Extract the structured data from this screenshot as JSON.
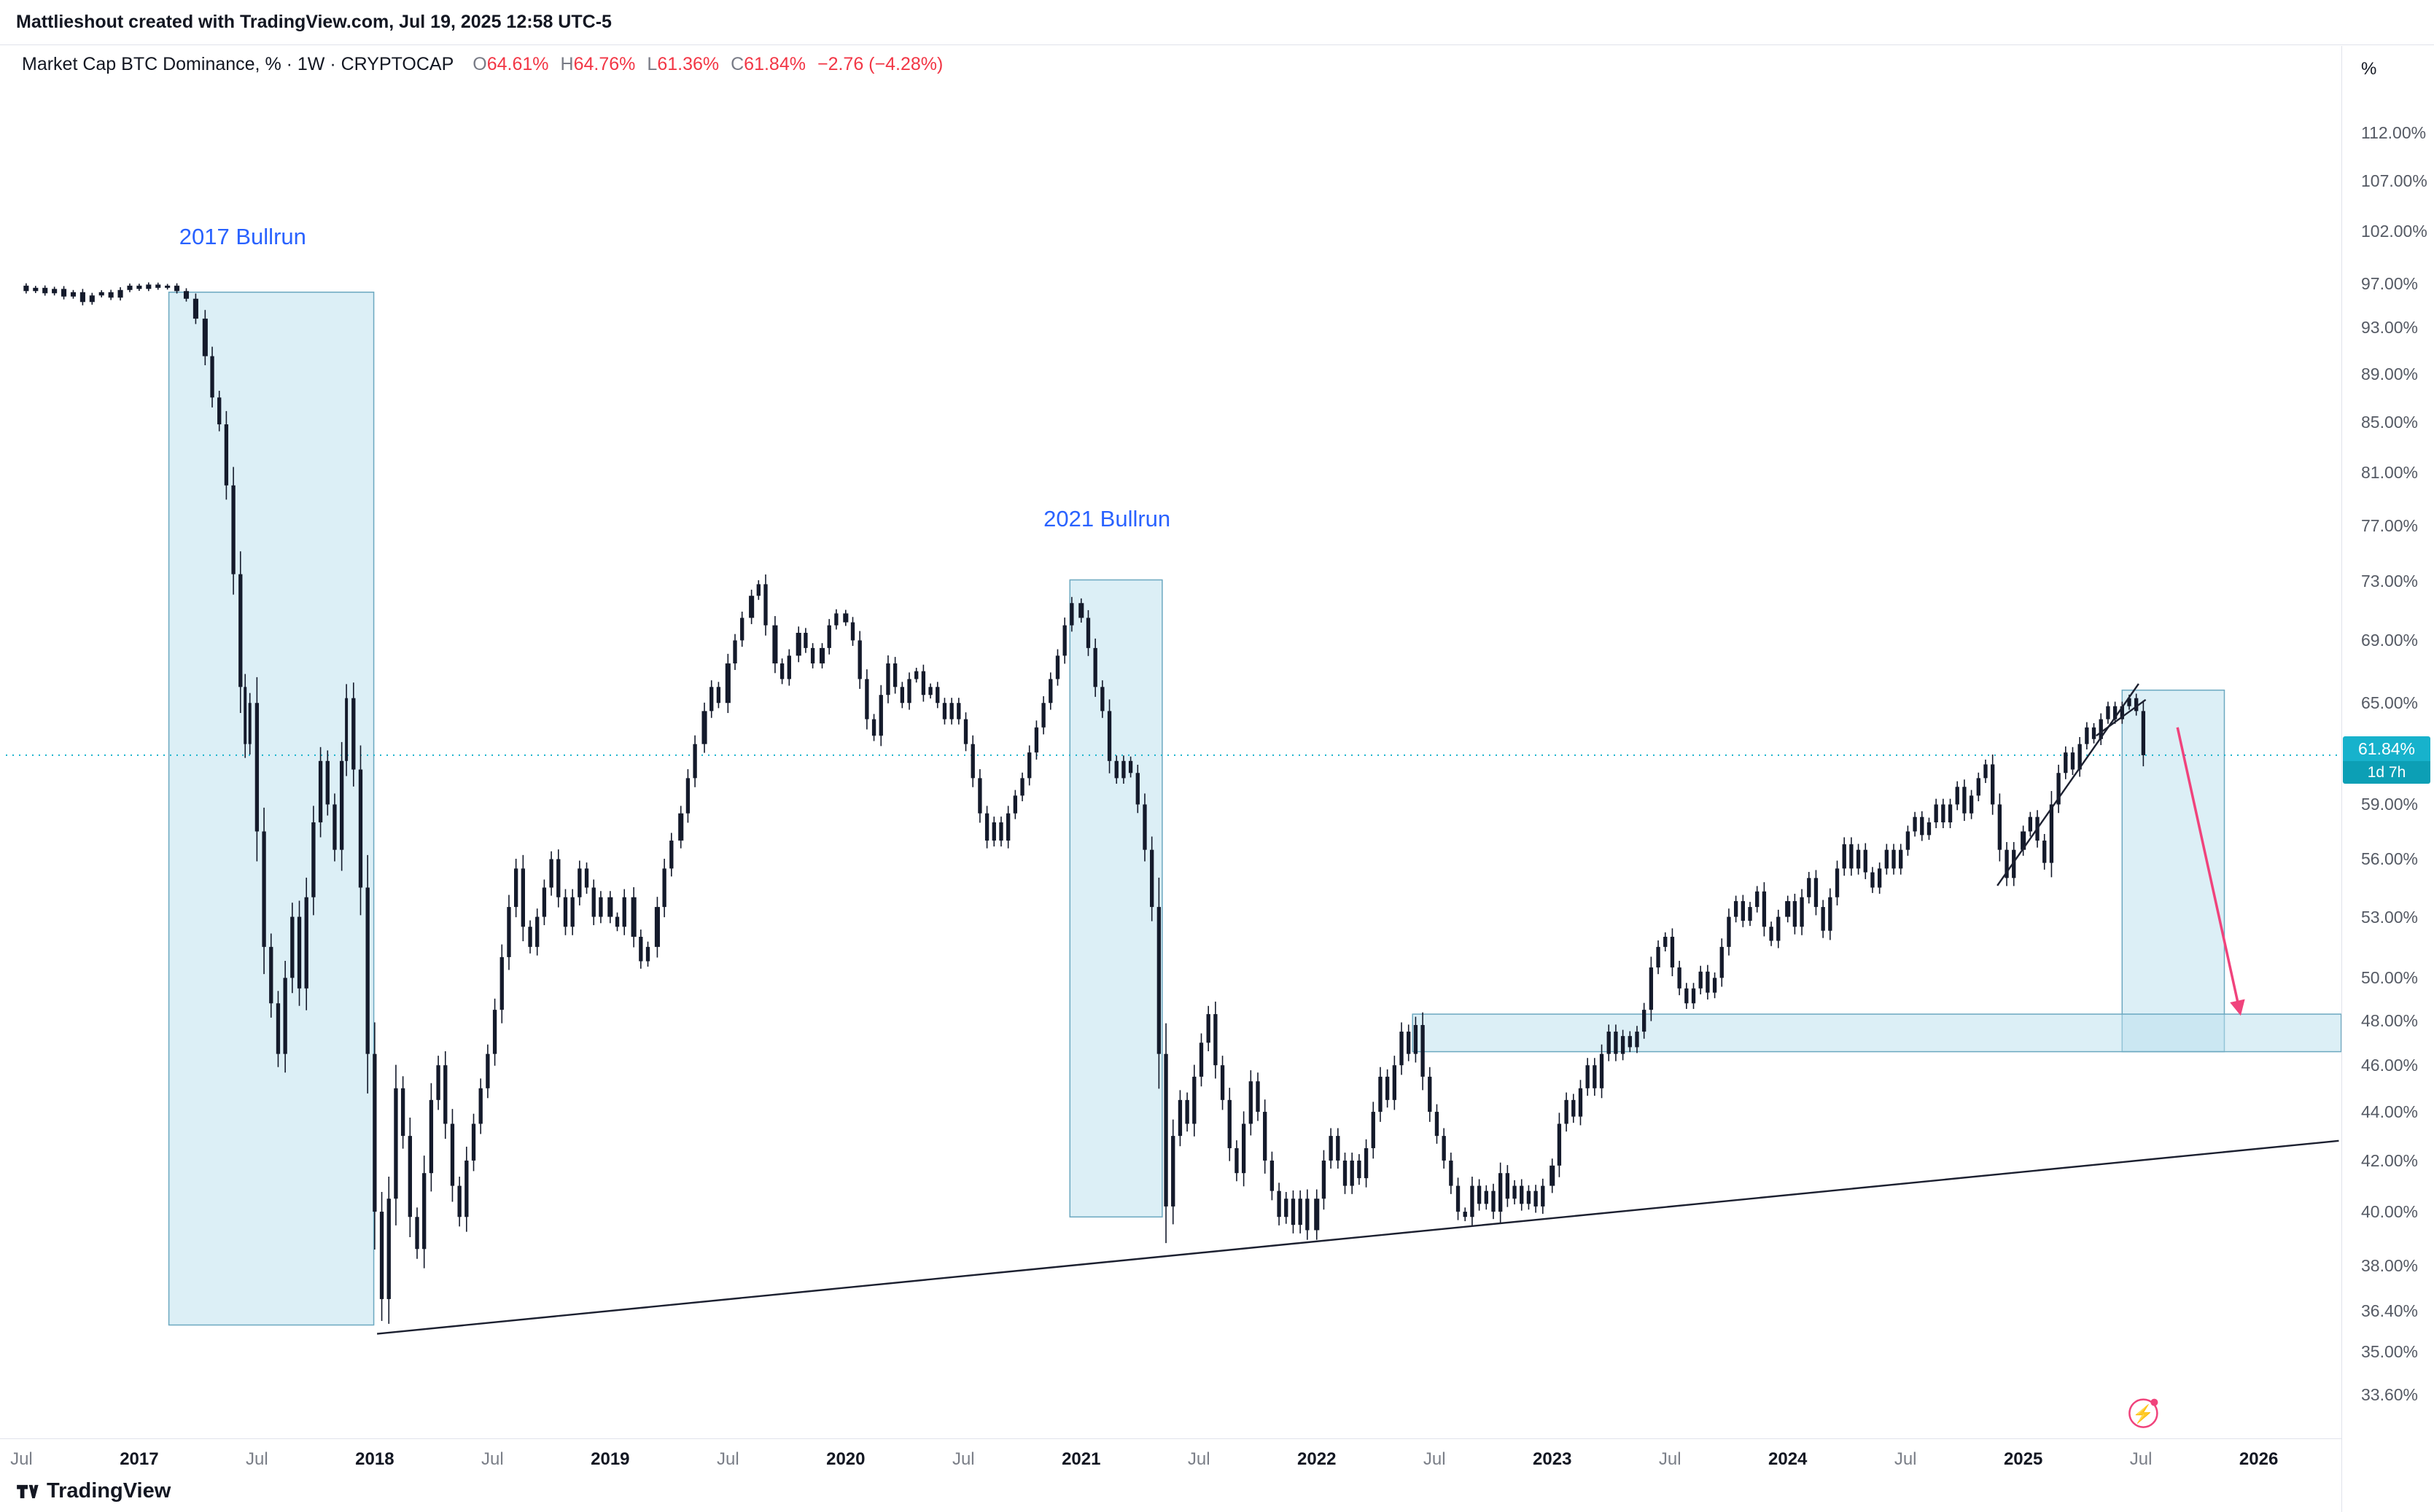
{
  "header": {
    "attribution": "Mattlieshout created with TradingView.com, Jul 19, 2025 12:58 UTC-5"
  },
  "legend": {
    "title": "Market Cap BTC Dominance, % · 1W · CRYPTOCAP",
    "ohlc": {
      "o_label": "O",
      "o": "64.61%",
      "h_label": "H",
      "h": "64.76%",
      "l_label": "L",
      "l": "61.36%",
      "c_label": "C",
      "c": "61.84%",
      "change": "−2.76 (−4.28%)"
    }
  },
  "colors": {
    "accent_cyan": "#17b2cc",
    "down_red": "#f23645",
    "annotation_blue": "#2962ff",
    "box_fill": "#badfee",
    "box_stroke": "#6ba8c0",
    "arrow_pink": "#f0437c",
    "trendline_black": "#1c2030"
  },
  "price_axis": {
    "unit": "%",
    "ticks": [
      {
        "v": 112,
        "label": "112.00%"
      },
      {
        "v": 107,
        "label": "107.00%"
      },
      {
        "v": 102,
        "label": "102.00%"
      },
      {
        "v": 97,
        "label": "97.00%"
      },
      {
        "v": 93,
        "label": "93.00%"
      },
      {
        "v": 89,
        "label": "89.00%"
      },
      {
        "v": 85,
        "label": "85.00%"
      },
      {
        "v": 81,
        "label": "81.00%"
      },
      {
        "v": 77,
        "label": "77.00%"
      },
      {
        "v": 73,
        "label": "73.00%"
      },
      {
        "v": 69,
        "label": "69.00%"
      },
      {
        "v": 65,
        "label": "65.00%"
      },
      {
        "v": 59,
        "label": "59.00%"
      },
      {
        "v": 56,
        "label": "56.00%"
      },
      {
        "v": 53,
        "label": "53.00%"
      },
      {
        "v": 50,
        "label": "50.00%"
      },
      {
        "v": 48,
        "label": "48.00%"
      },
      {
        "v": 46,
        "label": "46.00%"
      },
      {
        "v": 44,
        "label": "44.00%"
      },
      {
        "v": 42,
        "label": "42.00%"
      },
      {
        "v": 40,
        "label": "40.00%"
      },
      {
        "v": 38,
        "label": "38.00%"
      },
      {
        "v": 36.4,
        "label": "36.40%"
      },
      {
        "v": 35,
        "label": "35.00%"
      },
      {
        "v": 33.6,
        "label": "33.60%"
      }
    ],
    "last_price_label": {
      "value": "61.84%",
      "countdown": "1d 7h",
      "bg": "#17b2cc"
    }
  },
  "time_axis": {
    "ticks": [
      {
        "t": 2016.5,
        "label": "Jul",
        "type": "month"
      },
      {
        "t": 2017,
        "label": "2017",
        "type": "year"
      },
      {
        "t": 2017.5,
        "label": "Jul",
        "type": "month"
      },
      {
        "t": 2018,
        "label": "2018",
        "type": "year"
      },
      {
        "t": 2018.5,
        "label": "Jul",
        "type": "month"
      },
      {
        "t": 2019,
        "label": "2019",
        "type": "year"
      },
      {
        "t": 2019.5,
        "label": "Jul",
        "type": "month"
      },
      {
        "t": 2020,
        "label": "2020",
        "type": "year"
      },
      {
        "t": 2020.5,
        "label": "Jul",
        "type": "month"
      },
      {
        "t": 2021,
        "label": "2021",
        "type": "year"
      },
      {
        "t": 2021.5,
        "label": "Jul",
        "type": "month"
      },
      {
        "t": 2022,
        "label": "2022",
        "type": "year"
      },
      {
        "t": 2022.5,
        "label": "Jul",
        "type": "month"
      },
      {
        "t": 2023,
        "label": "2023",
        "type": "year"
      },
      {
        "t": 2023.5,
        "label": "Jul",
        "type": "month"
      },
      {
        "t": 2024,
        "label": "2024",
        "type": "year"
      },
      {
        "t": 2024.5,
        "label": "Jul",
        "type": "month"
      },
      {
        "t": 2025,
        "label": "2025",
        "type": "year"
      },
      {
        "t": 2025.5,
        "label": "Jul",
        "type": "month"
      },
      {
        "t": 2026,
        "label": "2026",
        "type": "year"
      }
    ]
  },
  "annotations": {
    "bullrun_2017": {
      "label": "2017 Bullrun",
      "t": 2017.17,
      "v": 101.5
    },
    "bullrun_2021": {
      "label": "2021 Bullrun",
      "t": 2020.84,
      "v": 77.5
    },
    "boxes": [
      {
        "name": "box-2017-bullrun",
        "t1": 2017.126,
        "t2": 2017.996,
        "v1": 96.2,
        "v2": 35.9
      },
      {
        "name": "box-2021-bullrun",
        "t1": 2020.952,
        "t2": 2021.344,
        "v1": 73.1,
        "v2": 39.8
      },
      {
        "name": "box-2025-current",
        "t1": 2025.42,
        "t2": 2025.854,
        "v1": 65.8,
        "v2": 46.6
      },
      {
        "name": "support-band-48pct",
        "t1": 2022.407,
        "t2": 2026.35,
        "v1": 48.3,
        "v2": 46.6
      }
    ],
    "trendlines": [
      {
        "name": "long-term-uptrend-line",
        "t1": 2018.01,
        "v1": 35.6,
        "t2": 2026.34,
        "v2": 42.8
      },
      {
        "name": "rising-wedge-lower-line",
        "t1": 2024.89,
        "v1": 54.6,
        "t2": 2025.49,
        "v2": 66.2
      },
      {
        "name": "rising-wedge-upper-line",
        "t1": 2025.31,
        "v1": 63.0,
        "t2": 2025.52,
        "v2": 65.2
      }
    ],
    "arrow": {
      "name": "projection-down-arrow",
      "t1": 2025.655,
      "v1": 63.5,
      "t2": 2025.92,
      "v2": 48.4
    },
    "flash_icon": {
      "t": 2025.51,
      "v": 33.0,
      "glyph": "⚡"
    }
  },
  "watermark": {
    "brand": "TradingView"
  },
  "chart_data": {
    "type": "candlestick",
    "title": "Market Cap BTC Dominance, % · 1W · CRYPTOCAP",
    "interval": "1W",
    "candle_color": "#141a2b",
    "x_axis": {
      "start": 2016.45,
      "end": 2026.42,
      "unit": "year"
    },
    "y_axis": {
      "scale": "log",
      "unit": "%",
      "min_visible": 33.6,
      "max_visible": 112
    },
    "last": {
      "open": 64.61,
      "high": 64.76,
      "low": 61.36,
      "close": 61.84,
      "change": -2.76,
      "change_pct": -4.28
    },
    "series": [
      [
        2016.48,
        96.8
      ],
      [
        2016.52,
        96.3
      ],
      [
        2016.56,
        96.6
      ],
      [
        2016.6,
        96.1
      ],
      [
        2016.64,
        96.5
      ],
      [
        2016.68,
        95.8
      ],
      [
        2016.72,
        96.2
      ],
      [
        2016.76,
        95.3
      ],
      [
        2016.8,
        95.9
      ],
      [
        2016.84,
        96.2
      ],
      [
        2016.88,
        95.7
      ],
      [
        2016.92,
        96.4
      ],
      [
        2016.96,
        96.8
      ],
      [
        2017,
        96.5
      ],
      [
        2017.04,
        96.9
      ],
      [
        2017.08,
        96.6
      ],
      [
        2017.12,
        96.8
      ],
      [
        2017.16,
        96.3
      ],
      [
        2017.2,
        95.6
      ],
      [
        2017.24,
        93.8
      ],
      [
        2017.28,
        90.5
      ],
      [
        2017.31,
        87
      ],
      [
        2017.34,
        84.8
      ],
      [
        2017.37,
        80
      ],
      [
        2017.4,
        73.5
      ],
      [
        2017.43,
        66
      ],
      [
        2017.45,
        62.5
      ],
      [
        2017.47,
        65
      ],
      [
        2017.5,
        57.5
      ],
      [
        2017.53,
        51.5
      ],
      [
        2017.56,
        48.8
      ],
      [
        2017.59,
        46.5
      ],
      [
        2017.62,
        50
      ],
      [
        2017.65,
        53
      ],
      [
        2017.68,
        49.5
      ],
      [
        2017.71,
        54
      ],
      [
        2017.74,
        58
      ],
      [
        2017.77,
        61.5
      ],
      [
        2017.8,
        59
      ],
      [
        2017.83,
        56.5
      ],
      [
        2017.86,
        61.5
      ],
      [
        2017.88,
        65.3
      ],
      [
        2017.91,
        61
      ],
      [
        2017.94,
        54.5
      ],
      [
        2017.97,
        46.5
      ],
      [
        2018,
        40
      ],
      [
        2018.03,
        36.8
      ],
      [
        2018.06,
        40.5
      ],
      [
        2018.09,
        45
      ],
      [
        2018.12,
        43
      ],
      [
        2018.15,
        39.8
      ],
      [
        2018.18,
        38.6
      ],
      [
        2018.21,
        41.5
      ],
      [
        2018.24,
        44.5
      ],
      [
        2018.27,
        46
      ],
      [
        2018.3,
        43.5
      ],
      [
        2018.33,
        41
      ],
      [
        2018.36,
        39.8
      ],
      [
        2018.39,
        42
      ],
      [
        2018.42,
        43.5
      ],
      [
        2018.45,
        45
      ],
      [
        2018.48,
        46.5
      ],
      [
        2018.51,
        48.5
      ],
      [
        2018.54,
        51
      ],
      [
        2018.57,
        53.5
      ],
      [
        2018.6,
        55.5
      ],
      [
        2018.63,
        52.5
      ],
      [
        2018.66,
        51.5
      ],
      [
        2018.69,
        53
      ],
      [
        2018.72,
        54.5
      ],
      [
        2018.75,
        56
      ],
      [
        2018.78,
        54
      ],
      [
        2018.81,
        52.5
      ],
      [
        2018.84,
        54
      ],
      [
        2018.87,
        55.5
      ],
      [
        2018.9,
        54.5
      ],
      [
        2018.93,
        53
      ],
      [
        2018.96,
        54
      ],
      [
        2019,
        53
      ],
      [
        2019.03,
        52.5
      ],
      [
        2019.06,
        54
      ],
      [
        2019.1,
        52
      ],
      [
        2019.13,
        50.8
      ],
      [
        2019.16,
        51.5
      ],
      [
        2019.2,
        53.5
      ],
      [
        2019.23,
        55.5
      ],
      [
        2019.26,
        57
      ],
      [
        2019.3,
        58.5
      ],
      [
        2019.33,
        60.5
      ],
      [
        2019.36,
        62.5
      ],
      [
        2019.4,
        64.5
      ],
      [
        2019.43,
        66
      ],
      [
        2019.46,
        65
      ],
      [
        2019.5,
        67.5
      ],
      [
        2019.53,
        69
      ],
      [
        2019.56,
        70.5
      ],
      [
        2019.6,
        72
      ],
      [
        2019.63,
        72.8
      ],
      [
        2019.66,
        70
      ],
      [
        2019.7,
        67.5
      ],
      [
        2019.73,
        66.5
      ],
      [
        2019.76,
        68
      ],
      [
        2019.8,
        69.5
      ],
      [
        2019.83,
        68.5
      ],
      [
        2019.86,
        67.5
      ],
      [
        2019.9,
        68.5
      ],
      [
        2019.93,
        70
      ],
      [
        2019.96,
        70.8
      ],
      [
        2020,
        70.2
      ],
      [
        2020.03,
        69
      ],
      [
        2020.06,
        66.5
      ],
      [
        2020.09,
        64
      ],
      [
        2020.12,
        63
      ],
      [
        2020.15,
        65.5
      ],
      [
        2020.18,
        67.5
      ],
      [
        2020.21,
        66
      ],
      [
        2020.24,
        65
      ],
      [
        2020.27,
        66.5
      ],
      [
        2020.3,
        67
      ],
      [
        2020.33,
        65.5
      ],
      [
        2020.36,
        66
      ],
      [
        2020.39,
        65
      ],
      [
        2020.42,
        64
      ],
      [
        2020.45,
        65
      ],
      [
        2020.48,
        64
      ],
      [
        2020.51,
        62.5
      ],
      [
        2020.54,
        60.5
      ],
      [
        2020.57,
        58.5
      ],
      [
        2020.6,
        57
      ],
      [
        2020.63,
        58
      ],
      [
        2020.66,
        57
      ],
      [
        2020.69,
        58.5
      ],
      [
        2020.72,
        59.5
      ],
      [
        2020.75,
        60.5
      ],
      [
        2020.78,
        62
      ],
      [
        2020.81,
        63.5
      ],
      [
        2020.84,
        65
      ],
      [
        2020.87,
        66.5
      ],
      [
        2020.9,
        68
      ],
      [
        2020.93,
        70
      ],
      [
        2020.96,
        71.5
      ],
      [
        2021,
        70.5
      ],
      [
        2021.03,
        68.5
      ],
      [
        2021.06,
        66
      ],
      [
        2021.09,
        64.5
      ],
      [
        2021.12,
        61.5
      ],
      [
        2021.15,
        60.5
      ],
      [
        2021.18,
        61.5
      ],
      [
        2021.21,
        60.8
      ],
      [
        2021.24,
        59
      ],
      [
        2021.27,
        56.5
      ],
      [
        2021.3,
        53.5
      ],
      [
        2021.33,
        46.5
      ],
      [
        2021.36,
        40.2
      ],
      [
        2021.39,
        43
      ],
      [
        2021.42,
        44.5
      ],
      [
        2021.45,
        43.5
      ],
      [
        2021.48,
        45.5
      ],
      [
        2021.51,
        47
      ],
      [
        2021.54,
        48.3
      ],
      [
        2021.57,
        46
      ],
      [
        2021.6,
        44.5
      ],
      [
        2021.63,
        42.5
      ],
      [
        2021.66,
        41.5
      ],
      [
        2021.69,
        43.5
      ],
      [
        2021.72,
        45.3
      ],
      [
        2021.75,
        44
      ],
      [
        2021.78,
        42
      ],
      [
        2021.81,
        40.8
      ],
      [
        2021.84,
        39.8
      ],
      [
        2021.87,
        40.5
      ],
      [
        2021.9,
        39.5
      ],
      [
        2021.93,
        40.5
      ],
      [
        2021.96,
        39.3
      ],
      [
        2022,
        40.5
      ],
      [
        2022.03,
        42
      ],
      [
        2022.06,
        43
      ],
      [
        2022.09,
        42
      ],
      [
        2022.12,
        41
      ],
      [
        2022.15,
        42
      ],
      [
        2022.18,
        41.3
      ],
      [
        2022.21,
        42.5
      ],
      [
        2022.24,
        44
      ],
      [
        2022.27,
        45.5
      ],
      [
        2022.3,
        44.5
      ],
      [
        2022.33,
        46
      ],
      [
        2022.36,
        47.5
      ],
      [
        2022.39,
        46.5
      ],
      [
        2022.42,
        47.8
      ],
      [
        2022.45,
        45.5
      ],
      [
        2022.48,
        44
      ],
      [
        2022.51,
        43
      ],
      [
        2022.54,
        42
      ],
      [
        2022.57,
        41
      ],
      [
        2022.6,
        40
      ],
      [
        2022.63,
        39.8
      ],
      [
        2022.66,
        41
      ],
      [
        2022.69,
        40.3
      ],
      [
        2022.72,
        40.8
      ],
      [
        2022.75,
        40
      ],
      [
        2022.78,
        41.5
      ],
      [
        2022.81,
        40.5
      ],
      [
        2022.84,
        41
      ],
      [
        2022.87,
        40.3
      ],
      [
        2022.9,
        40.8
      ],
      [
        2022.93,
        40.2
      ],
      [
        2022.96,
        41
      ],
      [
        2023,
        41.8
      ],
      [
        2023.03,
        43.5
      ],
      [
        2023.06,
        44.5
      ],
      [
        2023.09,
        43.8
      ],
      [
        2023.12,
        45
      ],
      [
        2023.15,
        46
      ],
      [
        2023.18,
        45
      ],
      [
        2023.21,
        46.5
      ],
      [
        2023.24,
        47.5
      ],
      [
        2023.27,
        46.5
      ],
      [
        2023.3,
        47.3
      ],
      [
        2023.33,
        46.8
      ],
      [
        2023.36,
        47.5
      ],
      [
        2023.39,
        48.5
      ],
      [
        2023.42,
        50.5
      ],
      [
        2023.45,
        51.5
      ],
      [
        2023.48,
        52
      ],
      [
        2023.51,
        50.5
      ],
      [
        2023.54,
        49.5
      ],
      [
        2023.57,
        48.8
      ],
      [
        2023.6,
        49.5
      ],
      [
        2023.63,
        50.3
      ],
      [
        2023.66,
        49.3
      ],
      [
        2023.69,
        50
      ],
      [
        2023.72,
        51.5
      ],
      [
        2023.75,
        53
      ],
      [
        2023.78,
        53.8
      ],
      [
        2023.81,
        52.8
      ],
      [
        2023.84,
        53.5
      ],
      [
        2023.87,
        54.3
      ],
      [
        2023.9,
        52.5
      ],
      [
        2023.93,
        51.8
      ],
      [
        2023.96,
        53
      ],
      [
        2024,
        53.8
      ],
      [
        2024.03,
        52.5
      ],
      [
        2024.06,
        54
      ],
      [
        2024.09,
        55
      ],
      [
        2024.12,
        53.5
      ],
      [
        2024.15,
        52.3
      ],
      [
        2024.18,
        54
      ],
      [
        2024.21,
        55.5
      ],
      [
        2024.24,
        56.8
      ],
      [
        2024.27,
        55.5
      ],
      [
        2024.3,
        56.5
      ],
      [
        2024.33,
        55.3
      ],
      [
        2024.36,
        54.5
      ],
      [
        2024.39,
        55.5
      ],
      [
        2024.42,
        56.5
      ],
      [
        2024.45,
        55.5
      ],
      [
        2024.48,
        56.5
      ],
      [
        2024.51,
        57.5
      ],
      [
        2024.54,
        58.3
      ],
      [
        2024.57,
        57.3
      ],
      [
        2024.6,
        58
      ],
      [
        2024.63,
        59
      ],
      [
        2024.66,
        58
      ],
      [
        2024.69,
        59
      ],
      [
        2024.72,
        60
      ],
      [
        2024.75,
        58.5
      ],
      [
        2024.78,
        59.5
      ],
      [
        2024.81,
        60.5
      ],
      [
        2024.84,
        61.3
      ],
      [
        2024.87,
        59
      ],
      [
        2024.9,
        56.5
      ],
      [
        2024.93,
        55
      ],
      [
        2024.96,
        56.5
      ],
      [
        2025,
        57.5
      ],
      [
        2025.03,
        58.3
      ],
      [
        2025.06,
        57
      ],
      [
        2025.09,
        55.8
      ],
      [
        2025.12,
        59
      ],
      [
        2025.15,
        60.8
      ],
      [
        2025.18,
        62
      ],
      [
        2025.21,
        61
      ],
      [
        2025.24,
        62.5
      ],
      [
        2025.27,
        63.5
      ],
      [
        2025.3,
        62.8
      ],
      [
        2025.33,
        64
      ],
      [
        2025.36,
        64.8
      ],
      [
        2025.39,
        64
      ],
      [
        2025.42,
        64.8
      ],
      [
        2025.45,
        65.3
      ],
      [
        2025.48,
        64.5
      ],
      [
        2025.51,
        61.84
      ]
    ]
  }
}
